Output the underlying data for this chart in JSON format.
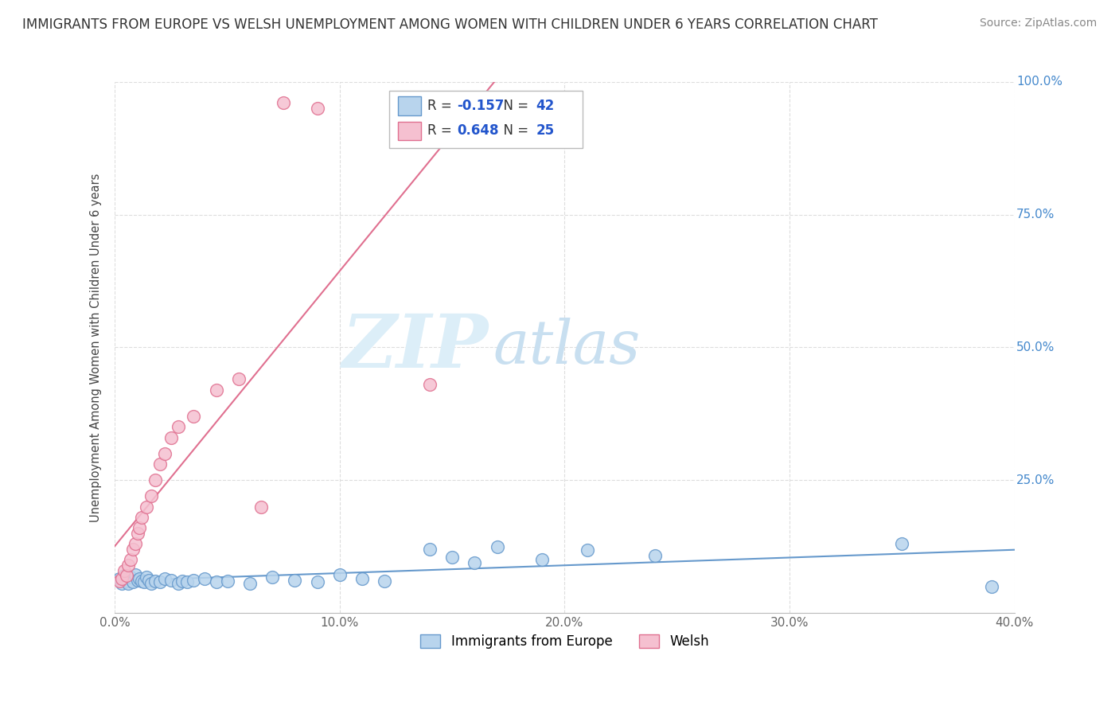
{
  "title": "IMMIGRANTS FROM EUROPE VS WELSH UNEMPLOYMENT AMONG WOMEN WITH CHILDREN UNDER 6 YEARS CORRELATION CHART",
  "source": "Source: ZipAtlas.com",
  "ylabel": "Unemployment Among Women with Children Under 6 years",
  "xlim": [
    0.0,
    0.4
  ],
  "ylim": [
    0.0,
    1.0
  ],
  "xticks": [
    0.0,
    0.1,
    0.2,
    0.3,
    0.4
  ],
  "yticks": [
    0.0,
    0.25,
    0.5,
    0.75,
    1.0
  ],
  "xticklabels": [
    "0.0%",
    "10.0%",
    "20.0%",
    "30.0%",
    "40.0%"
  ],
  "yticklabels": [
    "0.0%",
    "25.0%",
    "50.0%",
    "75.0%",
    "100.0%"
  ],
  "series": [
    {
      "name": "Immigrants from Europe",
      "color": "#b8d4ed",
      "edge_color": "#6699cc",
      "R": -0.157,
      "N": 42,
      "points_x": [
        0.002,
        0.003,
        0.004,
        0.005,
        0.006,
        0.007,
        0.008,
        0.009,
        0.01,
        0.011,
        0.012,
        0.013,
        0.014,
        0.015,
        0.016,
        0.018,
        0.02,
        0.022,
        0.025,
        0.028,
        0.03,
        0.032,
        0.035,
        0.04,
        0.045,
        0.05,
        0.06,
        0.07,
        0.08,
        0.09,
        0.1,
        0.11,
        0.12,
        0.14,
        0.15,
        0.16,
        0.17,
        0.19,
        0.21,
        0.24,
        0.35,
        0.39
      ],
      "points_y": [
        0.065,
        0.055,
        0.07,
        0.06,
        0.055,
        0.068,
        0.058,
        0.072,
        0.062,
        0.065,
        0.06,
        0.058,
        0.068,
        0.062,
        0.055,
        0.06,
        0.058,
        0.065,
        0.062,
        0.055,
        0.06,
        0.058,
        0.062,
        0.065,
        0.058,
        0.06,
        0.055,
        0.068,
        0.062,
        0.058,
        0.072,
        0.065,
        0.06,
        0.12,
        0.105,
        0.095,
        0.125,
        0.1,
        0.118,
        0.108,
        0.13,
        0.05
      ]
    },
    {
      "name": "Welsh",
      "color": "#f5c0d0",
      "edge_color": "#e07090",
      "R": 0.648,
      "N": 25,
      "points_x": [
        0.002,
        0.003,
        0.004,
        0.005,
        0.006,
        0.007,
        0.008,
        0.009,
        0.01,
        0.011,
        0.012,
        0.014,
        0.016,
        0.018,
        0.02,
        0.022,
        0.025,
        0.028,
        0.035,
        0.045,
        0.055,
        0.065,
        0.075,
        0.09,
        0.14
      ],
      "points_y": [
        0.06,
        0.065,
        0.08,
        0.07,
        0.09,
        0.1,
        0.12,
        0.13,
        0.15,
        0.16,
        0.18,
        0.2,
        0.22,
        0.25,
        0.28,
        0.3,
        0.33,
        0.35,
        0.37,
        0.42,
        0.44,
        0.2,
        0.96,
        0.95,
        0.43
      ]
    }
  ],
  "blue_trend_slope": -0.05,
  "blue_trend_intercept": 0.068,
  "pink_trend_slope": 7.5,
  "pink_trend_intercept": -0.02,
  "watermark_zip": "ZIP",
  "watermark_atlas": "atlas",
  "watermark_color": "#dceef8",
  "watermark_color2": "#c8dff0",
  "grid_color": "#dddddd",
  "title_color": "#333333",
  "tick_label_color_right": "#4488cc",
  "tick_label_color_bottom": "#666666",
  "axis_label_color": "#444444",
  "R_value_color": "#2255cc",
  "legend_entry_color": "#333333"
}
